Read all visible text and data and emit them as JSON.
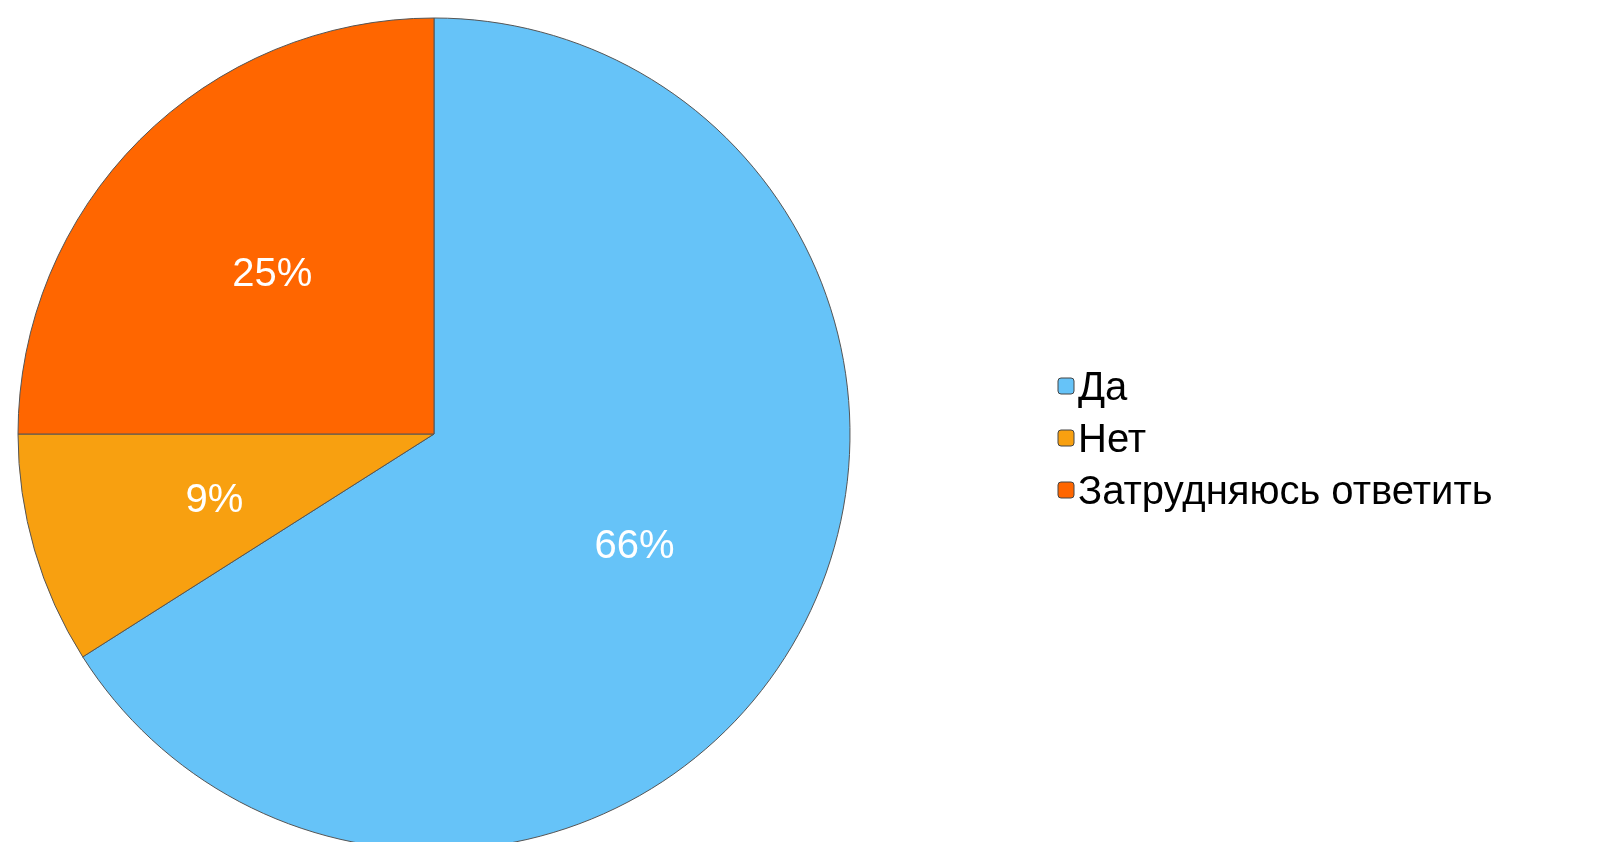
{
  "chart_data": {
    "type": "pie",
    "categories": [
      "Да",
      "Нет",
      "Затрудняюсь ответить"
    ],
    "values": [
      66,
      9,
      25
    ],
    "value_labels": [
      "66%",
      "9%",
      "25%"
    ],
    "colors": [
      "#66c3f8",
      "#f8a010",
      "#ff6600"
    ],
    "legend": "right"
  }
}
